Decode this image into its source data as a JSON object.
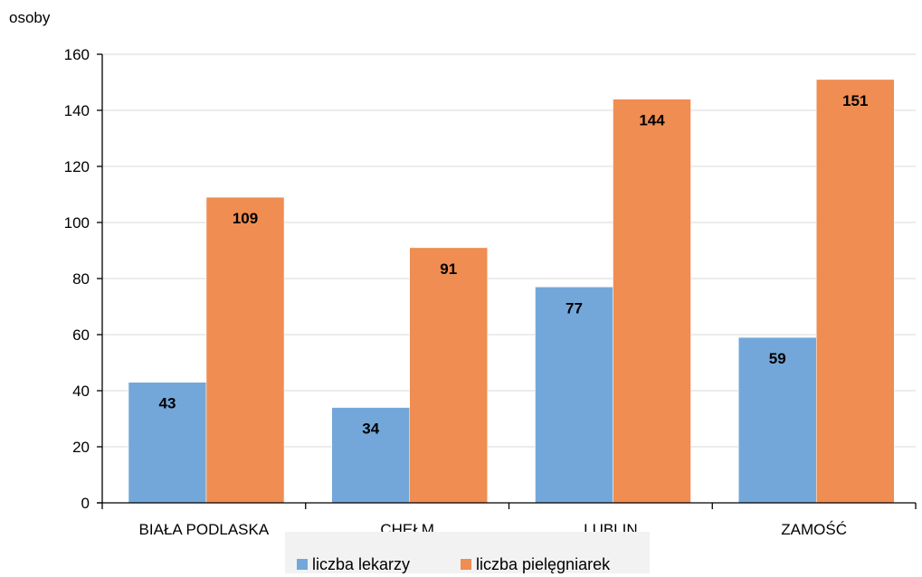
{
  "chart_data": {
    "type": "bar",
    "title": "",
    "xlabel": "",
    "ylabel": "osoby",
    "ylim": [
      0,
      160
    ],
    "yticks": [
      0,
      20,
      40,
      60,
      80,
      100,
      120,
      140,
      160
    ],
    "grid": "horizontal",
    "legend_position": "bottom",
    "categories": [
      "BIAŁA PODLASKA",
      "CHEŁM",
      "LUBLIN",
      "ZAMOŚĆ"
    ],
    "series": [
      {
        "name": "liczba lekarzy",
        "color": "#73a7da",
        "values": [
          43,
          34,
          77,
          59
        ]
      },
      {
        "name": "liczba pielęgniarek",
        "color": "#ef8d52",
        "values": [
          109,
          91,
          144,
          151
        ]
      }
    ]
  }
}
